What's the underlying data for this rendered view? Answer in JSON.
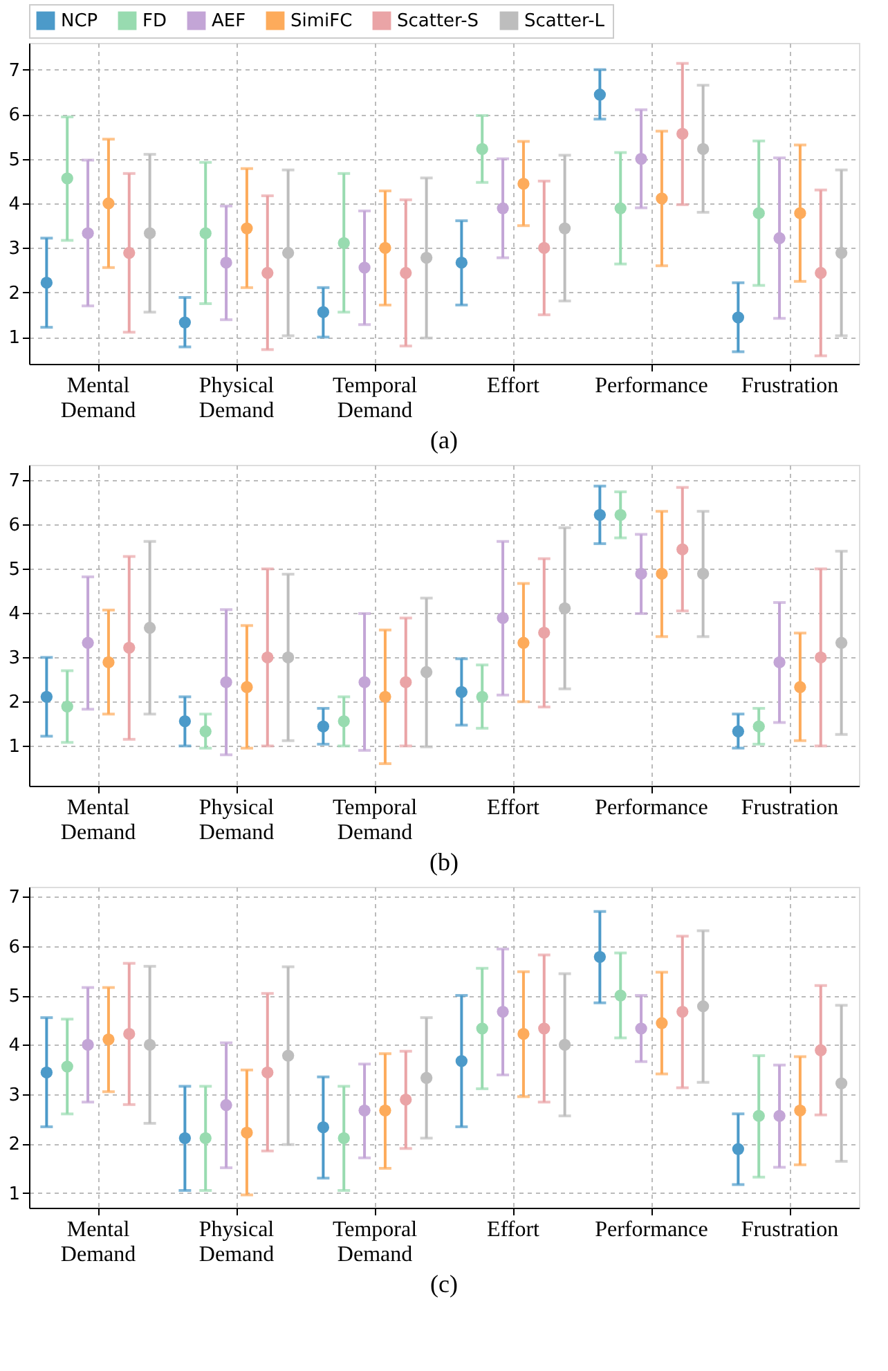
{
  "chart_data": [
    {
      "type": "scatter",
      "title": "(a)",
      "categories": [
        "Mental Demand",
        "Physical Demand",
        "Temporal Demand",
        "Effort",
        "Performance",
        "Frustration"
      ],
      "ylim": [
        0.4,
        7.6
      ],
      "yticks": [
        1,
        2,
        3,
        4,
        5,
        6,
        7
      ],
      "grid": true,
      "legend": "top",
      "marker": "circle",
      "series": [
        {
          "name": "NCP",
          "color": "#4c9ac9",
          "values": [
            2.22,
            1.33,
            1.56,
            2.67,
            6.44,
            1.44
          ],
          "errors": [
            [
              1.22,
              3.22
            ],
            [
              0.78,
              1.89
            ],
            [
              1.0,
              2.11
            ],
            [
              1.72,
              3.61
            ],
            [
              5.89,
              7.0
            ],
            [
              0.67,
              2.22
            ]
          ]
        },
        {
          "name": "FD",
          "color": "#98dbb0",
          "values": [
            4.56,
            3.33,
            3.11,
            5.22,
            3.89,
            3.78
          ],
          "errors": [
            [
              3.17,
              5.94
            ],
            [
              1.75,
              4.92
            ],
            [
              1.56,
              4.67
            ],
            [
              4.47,
              5.97
            ],
            [
              2.64,
              5.14
            ],
            [
              2.16,
              5.4
            ]
          ]
        },
        {
          "name": "AEF",
          "color": "#c3a5d6",
          "values": [
            3.33,
            2.67,
            2.56,
            3.89,
            5.0,
            3.22
          ],
          "errors": [
            [
              1.7,
              4.97
            ],
            [
              1.39,
              3.94
            ],
            [
              1.28,
              3.83
            ],
            [
              2.78,
              5.0
            ],
            [
              3.9,
              6.1
            ],
            [
              1.42,
              5.02
            ]
          ]
        },
        {
          "name": "SimiFC",
          "color": "#fdab5b",
          "values": [
            4.0,
            3.44,
            3.0,
            4.44,
            4.11,
            3.78
          ],
          "errors": [
            [
              2.56,
              5.44
            ],
            [
              2.11,
              4.78
            ],
            [
              1.72,
              4.28
            ],
            [
              3.5,
              5.39
            ],
            [
              2.6,
              5.62
            ],
            [
              2.25,
              5.31
            ]
          ]
        },
        {
          "name": "Scatter-S",
          "color": "#eaa4a6",
          "values": [
            2.89,
            2.44,
            2.44,
            3.0,
            5.56,
            2.44
          ],
          "errors": [
            [
              1.11,
              4.67
            ],
            [
              0.72,
              4.17
            ],
            [
              0.8,
              4.08
            ],
            [
              1.5,
              4.5
            ],
            [
              3.97,
              7.14
            ],
            [
              0.58,
              4.3
            ]
          ]
        },
        {
          "name": "Scatter-L",
          "color": "#bdbdbd",
          "values": [
            3.33,
            2.89,
            2.78,
            3.44,
            5.22,
            2.89
          ],
          "errors": [
            [
              1.56,
              5.1
            ],
            [
              1.03,
              4.75
            ],
            [
              0.98,
              4.57
            ],
            [
              1.81,
              5.08
            ],
            [
              3.8,
              6.65
            ],
            [
              1.03,
              4.75
            ]
          ]
        }
      ]
    },
    {
      "type": "scatter",
      "title": "(b)",
      "categories": [
        "Mental Demand",
        "Physical Demand",
        "Temporal Demand",
        "Effort",
        "Performance",
        "Frustration"
      ],
      "ylim": [
        0.1,
        7.35
      ],
      "yticks": [
        1,
        2,
        3,
        4,
        5,
        6,
        7
      ],
      "grid": true,
      "marker": "circle",
      "series": [
        {
          "name": "NCP",
          "color": "#4c9ac9",
          "values": [
            2.11,
            1.56,
            1.44,
            2.22,
            6.22,
            1.33
          ],
          "errors": [
            [
              1.22,
              3.0
            ],
            [
              1.0,
              2.11
            ],
            [
              1.04,
              1.85
            ],
            [
              1.47,
              2.97
            ],
            [
              5.57,
              6.87
            ],
            [
              0.95,
              1.72
            ]
          ]
        },
        {
          "name": "FD",
          "color": "#98dbb0",
          "values": [
            1.89,
            1.33,
            1.56,
            2.11,
            6.22,
            1.44
          ],
          "errors": [
            [
              1.08,
              2.7
            ],
            [
              0.95,
              1.72
            ],
            [
              1.0,
              2.11
            ],
            [
              1.4,
              2.83
            ],
            [
              5.7,
              6.74
            ],
            [
              1.04,
              1.85
            ]
          ]
        },
        {
          "name": "AEF",
          "color": "#c3a5d6",
          "values": [
            3.33,
            2.44,
            2.44,
            3.89,
            4.89,
            2.89
          ],
          "errors": [
            [
              1.83,
              4.82
            ],
            [
              0.8,
              4.08
            ],
            [
              0.9,
              3.99
            ],
            [
              2.15,
              5.62
            ],
            [
              3.99,
              5.78
            ],
            [
              1.53,
              4.24
            ]
          ]
        },
        {
          "name": "SimiFC",
          "color": "#fdab5b",
          "values": [
            2.89,
            2.33,
            2.11,
            3.33,
            4.89,
            2.33
          ],
          "errors": [
            [
              1.72,
              4.07
            ],
            [
              0.95,
              3.72
            ],
            [
              0.6,
              3.62
            ],
            [
              2.0,
              4.67
            ],
            [
              3.47,
              6.3
            ],
            [
              1.12,
              3.55
            ]
          ]
        },
        {
          "name": "Scatter-S",
          "color": "#eaa4a6",
          "values": [
            3.22,
            3.0,
            2.44,
            3.56,
            5.44,
            3.0
          ],
          "errors": [
            [
              1.15,
              5.28
            ],
            [
              1.0,
              5.0
            ],
            [
              1.0,
              3.89
            ],
            [
              1.88,
              5.23
            ],
            [
              4.05,
              6.84
            ],
            [
              1.0,
              5.0
            ]
          ]
        },
        {
          "name": "Scatter-L",
          "color": "#bdbdbd",
          "values": [
            3.67,
            3.0,
            2.67,
            4.11,
            4.89,
            3.33
          ],
          "errors": [
            [
              1.72,
              5.62
            ],
            [
              1.12,
              4.88
            ],
            [
              0.98,
              4.34
            ],
            [
              2.29,
              5.93
            ],
            [
              3.47,
              6.3
            ],
            [
              1.26,
              5.4
            ]
          ]
        }
      ]
    },
    {
      "type": "scatter",
      "title": "(c)",
      "categories": [
        "Mental Demand",
        "Physical Demand",
        "Temporal Demand",
        "Effort",
        "Performance",
        "Frustration"
      ],
      "ylim": [
        0.7,
        7.2
      ],
      "yticks": [
        1,
        2,
        3,
        4,
        5,
        6,
        7
      ],
      "grid": true,
      "marker": "circle",
      "series": [
        {
          "name": "NCP",
          "color": "#4c9ac9",
          "values": [
            3.44,
            2.11,
            2.33,
            3.67,
            5.78,
            1.89
          ],
          "errors": [
            [
              2.34,
              4.55
            ],
            [
              1.05,
              3.16
            ],
            [
              1.3,
              3.35
            ],
            [
              2.34,
              5.0
            ],
            [
              4.85,
              6.7
            ],
            [
              1.17,
              2.6
            ]
          ]
        },
        {
          "name": "FD",
          "color": "#98dbb0",
          "values": [
            3.56,
            2.11,
            2.11,
            4.33,
            5.0,
            2.56
          ],
          "errors": [
            [
              2.6,
              4.52
            ],
            [
              1.05,
              3.16
            ],
            [
              1.05,
              3.16
            ],
            [
              3.11,
              5.55
            ],
            [
              4.14,
              5.86
            ],
            [
              1.32,
              3.78
            ]
          ]
        },
        {
          "name": "AEF",
          "color": "#c3a5d6",
          "values": [
            4.0,
            2.78,
            2.67,
            4.67,
            4.33,
            2.56
          ],
          "errors": [
            [
              2.84,
              5.16
            ],
            [
              1.51,
              4.04
            ],
            [
              1.71,
              3.61
            ],
            [
              3.39,
              5.94
            ],
            [
              3.66,
              5.0
            ],
            [
              1.52,
              3.59
            ]
          ]
        },
        {
          "name": "SimiFC",
          "color": "#fdab5b",
          "values": [
            4.11,
            2.22,
            2.67,
            4.22,
            4.44,
            2.67
          ],
          "errors": [
            [
              3.05,
              5.16
            ],
            [
              0.96,
              3.49
            ],
            [
              1.5,
              3.82
            ],
            [
              2.95,
              5.48
            ],
            [
              3.41,
              5.47
            ],
            [
              1.57,
              3.76
            ]
          ]
        },
        {
          "name": "Scatter-S",
          "color": "#eaa4a6",
          "values": [
            4.22,
            3.44,
            2.89,
            4.33,
            4.67,
            3.89
          ],
          "errors": [
            [
              2.79,
              5.65
            ],
            [
              1.85,
              5.04
            ],
            [
              1.9,
              3.87
            ],
            [
              2.84,
              5.82
            ],
            [
              3.13,
              6.2
            ],
            [
              2.58,
              5.2
            ]
          ]
        },
        {
          "name": "Scatter-L",
          "color": "#bdbdbd",
          "values": [
            4.0,
            3.78,
            3.33,
            4.0,
            4.78,
            3.22
          ],
          "errors": [
            [
              2.41,
              5.59
            ],
            [
              1.98,
              5.58
            ],
            [
              2.11,
              4.55
            ],
            [
              2.56,
              5.44
            ],
            [
              3.24,
              6.31
            ],
            [
              1.64,
              4.8
            ]
          ]
        }
      ]
    }
  ]
}
